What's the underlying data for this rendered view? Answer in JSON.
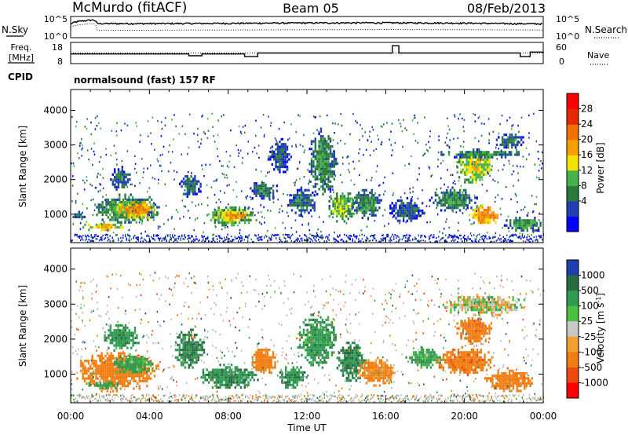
{
  "header": {
    "station": "McMurdo (fitACF)",
    "beam": "Beam 05",
    "date": "08/Feb/2013"
  },
  "noise_panel": {
    "left_label": "N.Sky",
    "right_label": "N.Search",
    "left_ticks": [
      "10^5",
      "10^0"
    ],
    "right_ticks": [
      "10^5",
      "10^0"
    ]
  },
  "freq_panel": {
    "left_label_1": "Freq.",
    "left_label_2": "[MHz]",
    "right_label": "Nave",
    "left_ticks": [
      "18",
      "8"
    ],
    "right_ticks": [
      "60",
      "0"
    ]
  },
  "cpid": {
    "label": "CPID",
    "value": "normalsound (fast) 157 RF"
  },
  "colors": {
    "power_scale": [
      "#0000ff",
      "#1f3fb0",
      "#2a7a3a",
      "#45b34a",
      "#f2e400",
      "#f5a000",
      "#f07000",
      "#e62a00",
      "#ff0000"
    ],
    "velocity_scale": [
      "#1f3fb0",
      "#2a6a40",
      "#2e9a52",
      "#4bbf3f",
      "#c8c8c8",
      "#f2a030",
      "#f07d10",
      "#ee4a10",
      "#ff0000"
    ],
    "ground_scatter": "#b8b8b8"
  },
  "chart_data": [
    {
      "type": "line",
      "title": "",
      "xlabel": "",
      "ylabel": "N.Sky",
      "y_scale": "log",
      "series": [
        {
          "name": "N.Sky",
          "style": "solid",
          "x": [
            "00:00",
            "01:10",
            "01:20",
            "04:00",
            "08:00",
            "12:00",
            "16:00",
            "20:00",
            "22:00",
            "24:00"
          ],
          "values": [
            2000,
            30000,
            3000,
            3000,
            3500,
            4500,
            5000,
            4000,
            3000,
            2500
          ]
        },
        {
          "name": "N.Search",
          "style": "dotted",
          "x": [
            "00:00",
            "01:10",
            "01:20",
            "08:00",
            "12:00",
            "16:00",
            "20:00",
            "24:00"
          ],
          "values": [
            300,
            3000,
            40,
            50,
            60,
            70,
            60,
            50
          ]
        }
      ]
    },
    {
      "type": "line",
      "ylabel": "Freq. [MHz]",
      "y2label": "Nave",
      "ylim": [
        8,
        18
      ],
      "y2lim": [
        0,
        60
      ],
      "series": [
        {
          "name": "Freq.",
          "style": "solid",
          "x": [
            "00:00",
            "05:50",
            "06:00",
            "06:30",
            "06:40",
            "08:40",
            "08:50",
            "09:20",
            "09:30",
            "16:10",
            "16:20",
            "16:30",
            "16:40",
            "22:40",
            "22:50",
            "23:10",
            "23:20",
            "24:00"
          ],
          "values": [
            12.5,
            12.5,
            11.5,
            11.5,
            12.5,
            12.5,
            11.0,
            11.0,
            13.0,
            13.0,
            17.0,
            17.0,
            13.0,
            13.0,
            11.0,
            11.0,
            13.5,
            13.0
          ]
        },
        {
          "name": "Nave",
          "style": "dotted",
          "x": [
            "00:00",
            "24:00"
          ],
          "values": [
            30,
            30
          ]
        }
      ]
    },
    {
      "type": "heatmap",
      "title": "",
      "xlabel": "Time UT",
      "ylabel": "Slant Range [km]",
      "colorbar_label": "Power [dB]",
      "colorbar_ticks": [
        "28",
        "24",
        "20",
        "16",
        "12",
        "8",
        "4"
      ],
      "x_ticks": [
        "00:00",
        "04:00",
        "08:00",
        "12:00",
        "16:00",
        "20:00",
        "00:00"
      ],
      "y_ticks": [
        "1000",
        "2000",
        "3000",
        "4000"
      ],
      "xlim_hours": [
        0,
        24
      ],
      "ylim": [
        180,
        4600
      ],
      "regions": [
        {
          "t": [
            0.0,
            0.8
          ],
          "r": [
            900,
            1100
          ],
          "value": 10
        },
        {
          "t": [
            0.5,
            2.8
          ],
          "r": [
            550,
            800
          ],
          "value": 20
        },
        {
          "t": [
            1.0,
            4.6
          ],
          "r": [
            750,
            1600
          ],
          "value": 14
        },
        {
          "t": [
            2.4,
            4.3
          ],
          "r": [
            850,
            1450
          ],
          "value": 24
        },
        {
          "t": [
            2.0,
            3.0
          ],
          "r": [
            1700,
            2400
          ],
          "value": 10
        },
        {
          "t": [
            5.5,
            6.6
          ],
          "r": [
            1500,
            2200
          ],
          "value": 10
        },
        {
          "t": [
            6.8,
            9.5
          ],
          "r": [
            700,
            1300
          ],
          "value": 16
        },
        {
          "t": [
            7.5,
            9.0
          ],
          "r": [
            850,
            1150
          ],
          "value": 24
        },
        {
          "t": [
            9.0,
            10.5
          ],
          "r": [
            1400,
            2000
          ],
          "value": 10
        },
        {
          "t": [
            10.0,
            11.2
          ],
          "r": [
            2200,
            3200
          ],
          "value": 8
        },
        {
          "t": [
            11.0,
            12.5
          ],
          "r": [
            1000,
            1800
          ],
          "value": 10
        },
        {
          "t": [
            12.0,
            13.5
          ],
          "r": [
            1500,
            3500
          ],
          "value": 12
        },
        {
          "t": [
            13.0,
            14.5
          ],
          "r": [
            800,
            1700
          ],
          "value": 16
        },
        {
          "t": [
            14.2,
            15.8
          ],
          "r": [
            900,
            1800
          ],
          "value": 12
        },
        {
          "t": [
            16.0,
            18.0
          ],
          "r": [
            800,
            1500
          ],
          "value": 8
        },
        {
          "t": [
            18.2,
            20.6
          ],
          "r": [
            1100,
            1800
          ],
          "value": 12
        },
        {
          "t": [
            19.5,
            21.5
          ],
          "r": [
            1900,
            2900
          ],
          "value": 18
        },
        {
          "t": [
            20.2,
            21.8
          ],
          "r": [
            700,
            1300
          ],
          "value": 24
        },
        {
          "t": [
            18.5,
            23.0
          ],
          "r": [
            2650,
            2900
          ],
          "value": 12
        },
        {
          "t": [
            21.5,
            23.0
          ],
          "r": [
            2900,
            3400
          ],
          "value": 10
        },
        {
          "t": [
            22.0,
            24.0
          ],
          "r": [
            500,
            1000
          ],
          "value": 12
        }
      ]
    },
    {
      "type": "heatmap",
      "title": "",
      "xlabel": "Time UT",
      "ylabel": "Slant Range [km]",
      "colorbar_label": "Velocity [m s^-1]",
      "colorbar_ticks": [
        "1000",
        "500",
        "100",
        "25",
        "-25",
        "-100",
        "-500",
        "-1000"
      ],
      "x_ticks": [
        "00:00",
        "04:00",
        "08:00",
        "12:00",
        "16:00",
        "20:00",
        "00:00"
      ],
      "y_ticks": [
        "1000",
        "2000",
        "3000",
        "4000"
      ],
      "xlim_hours": [
        0,
        24
      ],
      "ylim": [
        180,
        4600
      ],
      "regions": [
        {
          "t": [
            0.1,
            4.5
          ],
          "r": [
            550,
            1700
          ],
          "value": -300
        },
        {
          "t": [
            0.8,
            2.6
          ],
          "r": [
            600,
            850
          ],
          "value": 150
        },
        {
          "t": [
            2.0,
            4.2
          ],
          "r": [
            1000,
            1600
          ],
          "value": 150
        },
        {
          "t": [
            1.5,
            3.5
          ],
          "r": [
            1700,
            2500
          ],
          "value": 200
        },
        {
          "t": [
            5.2,
            6.8
          ],
          "r": [
            1200,
            2300
          ],
          "value": 300
        },
        {
          "t": [
            6.5,
            9.5
          ],
          "r": [
            600,
            1300
          ],
          "value": 250
        },
        {
          "t": [
            9.0,
            10.5
          ],
          "r": [
            1000,
            1800
          ],
          "value": -300
        },
        {
          "t": [
            10.5,
            12.0
          ],
          "r": [
            600,
            1300
          ],
          "value": 250
        },
        {
          "t": [
            11.5,
            13.5
          ],
          "r": [
            1200,
            2800
          ],
          "value": 200
        },
        {
          "t": [
            13.5,
            15.0
          ],
          "r": [
            800,
            2000
          ],
          "value": 300
        },
        {
          "t": [
            14.5,
            16.5
          ],
          "r": [
            700,
            1500
          ],
          "value": -200
        },
        {
          "t": [
            17.0,
            19.0
          ],
          "r": [
            1200,
            1800
          ],
          "value": 150
        },
        {
          "t": [
            18.5,
            21.5
          ],
          "r": [
            1000,
            1800
          ],
          "value": -400
        },
        {
          "t": [
            19.5,
            21.5
          ],
          "r": [
            1900,
            2700
          ],
          "value": -400
        },
        {
          "t": [
            18.5,
            23.2
          ],
          "r": [
            2700,
            3300
          ],
          "value": 0
        },
        {
          "t": [
            21.0,
            23.5
          ],
          "r": [
            500,
            1200
          ],
          "value": -350
        }
      ]
    }
  ]
}
